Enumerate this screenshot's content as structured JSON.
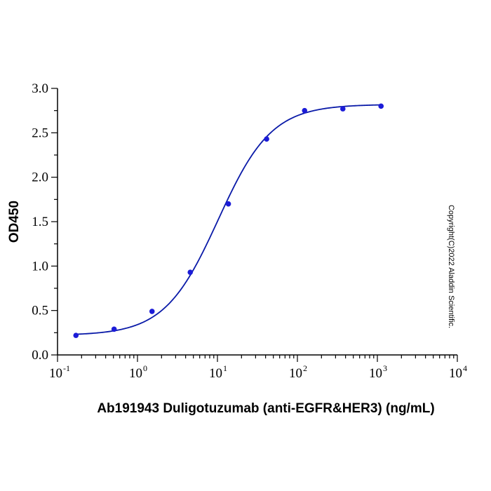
{
  "chart_data": {
    "type": "scatter",
    "xlabel": "Ab191943 Duligotuzumab (anti-EGFR&HER3) (ng/mL)",
    "ylabel": "OD450",
    "xscale": "log",
    "xlim": [
      0.1,
      10000
    ],
    "ylim": [
      0,
      3.0
    ],
    "x_ticks": [
      {
        "base": "10",
        "exp": "-1",
        "value": 0.1
      },
      {
        "base": "10",
        "exp": "0",
        "value": 1
      },
      {
        "base": "10",
        "exp": "1",
        "value": 10
      },
      {
        "base": "10",
        "exp": "2",
        "value": 100
      },
      {
        "base": "10",
        "exp": "3",
        "value": 1000
      },
      {
        "base": "10",
        "exp": "4",
        "value": 10000
      }
    ],
    "y_ticks": [
      "0.0",
      "0.5",
      "1.0",
      "1.5",
      "2.0",
      "2.5",
      "3.0"
    ],
    "series": [
      {
        "x": [
          0.17,
          0.51,
          1.52,
          4.57,
          13.7,
          41.2,
          123,
          370,
          1111
        ],
        "y": [
          0.22,
          0.29,
          0.49,
          0.93,
          1.7,
          2.43,
          2.75,
          2.77,
          2.8
        ]
      }
    ],
    "fit": {
      "model": "4PL",
      "bottom": 0.22,
      "top": 2.82,
      "ec50": 10.2,
      "hill": 1.3
    },
    "grid": false,
    "legend": "none",
    "colors": {
      "points": "#1c1cd8",
      "curve": "#0a1aa8"
    },
    "watermark": "Copyright(C)2022 Aladdin Scientific."
  }
}
